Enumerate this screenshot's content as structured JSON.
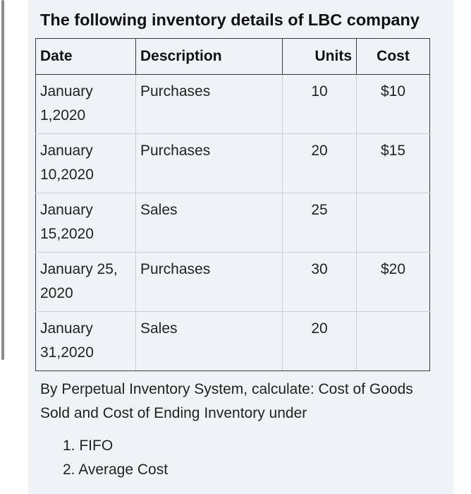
{
  "title": "The following inventory details of LBC company",
  "table": {
    "headers": {
      "date": "Date",
      "description": "Description",
      "units": "Units",
      "cost": "Cost"
    },
    "rows": [
      {
        "date_line1": "January",
        "date_line2": "1,2020",
        "description": "Purchases",
        "units": "10",
        "cost": "$10"
      },
      {
        "date_line1": "January",
        "date_line2": "10,2020",
        "description": "Purchases",
        "units": "20",
        "cost": "$15"
      },
      {
        "date_line1": "January",
        "date_line2": "15,2020",
        "description": "Sales",
        "units": "25",
        "cost": ""
      },
      {
        "date_line1": "January 25,",
        "date_line2": "2020",
        "description": "Purchases",
        "units": "30",
        "cost": "$20"
      },
      {
        "date_line1": "January",
        "date_line2": "31,2020",
        "description": "Sales",
        "units": "20",
        "cost": ""
      }
    ]
  },
  "question": "By Perpetual Inventory System, calculate: Cost of Goods Sold and Cost of Ending Inventory under",
  "methods": [
    {
      "number": "1.",
      "label": "FIFO"
    },
    {
      "number": "2.",
      "label": "Average Cost"
    }
  ]
}
